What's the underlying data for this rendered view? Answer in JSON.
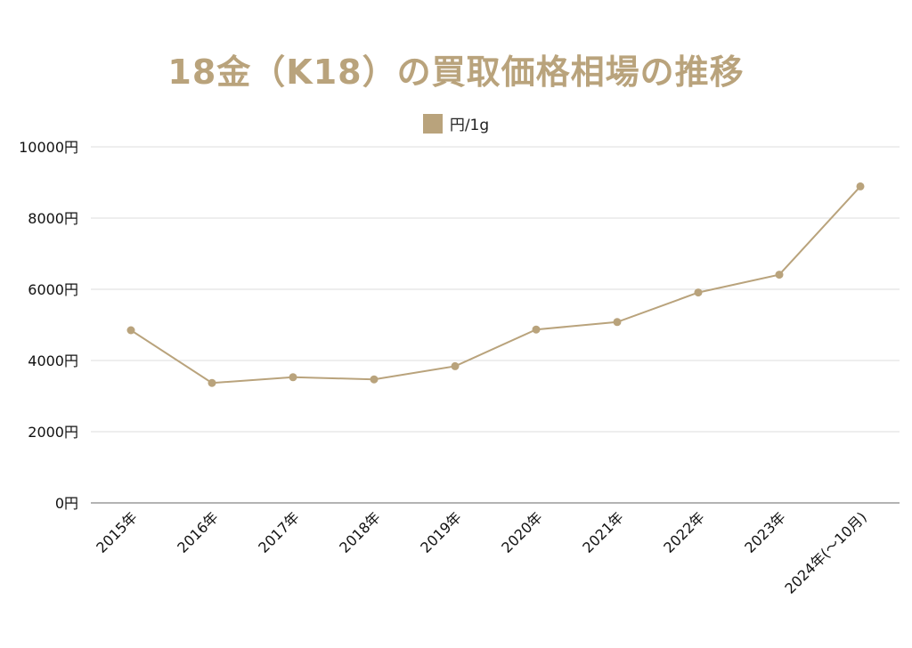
{
  "chart_data": {
    "type": "line",
    "title": "18金（K18）の買取価格相場の推移",
    "categories": [
      "2015年",
      "2016年",
      "2017年",
      "2018年",
      "2019年",
      "2020年",
      "2021年",
      "2022年",
      "2023年",
      "2024年(～10月)"
    ],
    "series": [
      {
        "name": "円/1g",
        "values": [
          4850,
          3370,
          3530,
          3470,
          3840,
          4870,
          5080,
          5910,
          6410,
          8890
        ]
      }
    ],
    "ylim": [
      0,
      10000
    ],
    "yticks": [
      "0円",
      "2000円",
      "4000円",
      "6000円",
      "8000円",
      "10000円"
    ],
    "ytick_values": [
      0,
      2000,
      4000,
      6000,
      8000,
      10000
    ],
    "grid": true,
    "legend_position": "top-center",
    "colors": {
      "line": "#b9a37c",
      "title": "#b9a37c",
      "grid": "#dddddd",
      "axis": "#9a9a9a"
    }
  }
}
